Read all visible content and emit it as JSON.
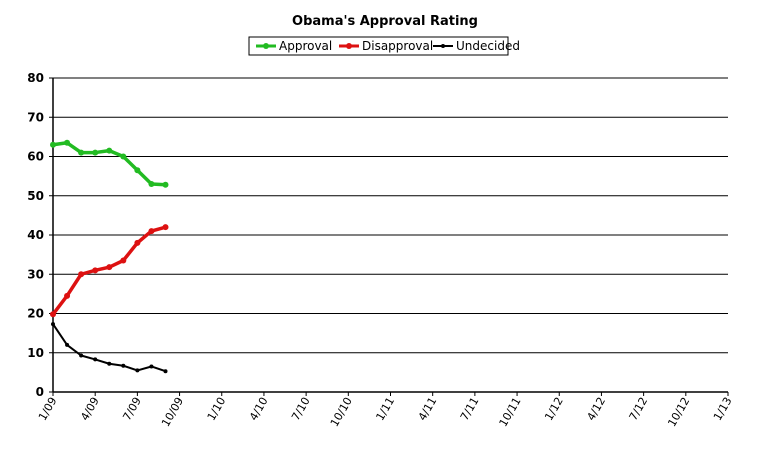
{
  "chart_data": {
    "type": "line",
    "title": "Obama's Approval Rating",
    "xlabel": "",
    "ylabel": "",
    "ylim": [
      0,
      80
    ],
    "yticks": [
      0,
      10,
      20,
      30,
      40,
      50,
      60,
      70,
      80
    ],
    "grid": "horizontal",
    "legend": "top-center",
    "x_tick_labels": [
      "1/09",
      "4/09",
      "7/09",
      "10/09",
      "1/10",
      "4/10",
      "7/10",
      "10/10",
      "1/11",
      "4/11",
      "7/11",
      "10/11",
      "1/12",
      "4/12",
      "7/12",
      "10/12",
      "1/13"
    ],
    "x": [
      "2009-01",
      "2009-02",
      "2009-03",
      "2009-04",
      "2009-05",
      "2009-06",
      "2009-07",
      "2009-08",
      "2009-09"
    ],
    "series": [
      {
        "name": "Approval",
        "color": "#22bb22",
        "values": [
          63,
          63.5,
          61,
          61,
          61.5,
          60,
          56.5,
          53,
          52.8
        ]
      },
      {
        "name": "Disapproval",
        "color": "#dd1111",
        "values": [
          19.8,
          24.5,
          30,
          31,
          31.8,
          33.5,
          38,
          41,
          42
        ]
      },
      {
        "name": "Undecided",
        "color": "#000000",
        "values": [
          17.3,
          12,
          9.3,
          8.3,
          7.2,
          6.7,
          5.5,
          6.5,
          5.3
        ]
      }
    ]
  }
}
